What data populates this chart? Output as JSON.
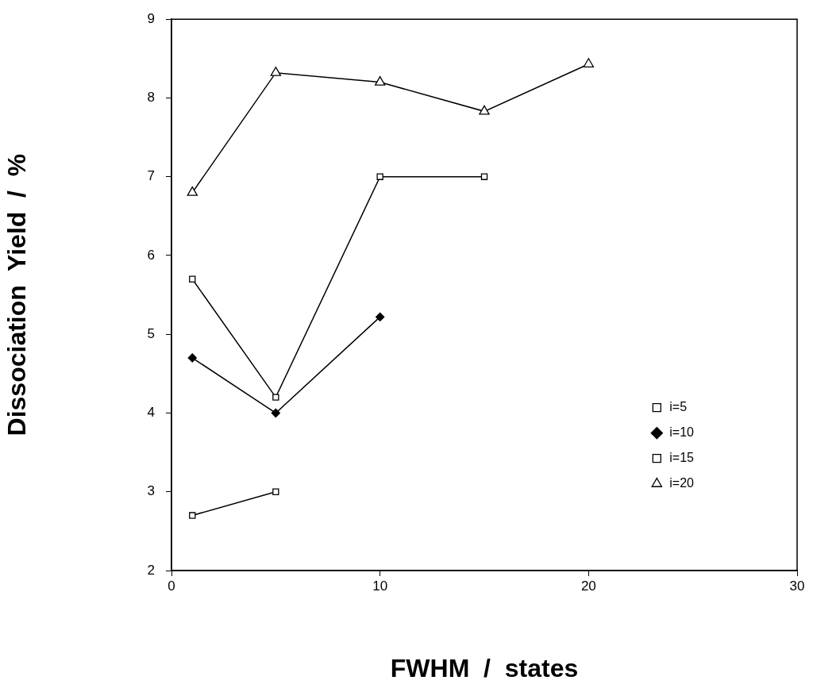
{
  "chart_data": {
    "type": "line",
    "xlabel": "FWHM  /  states",
    "ylabel": "Dissociation  Yield  /  %",
    "xlim": [
      0,
      30
    ],
    "xticks": [
      0,
      10,
      20,
      30
    ],
    "ylim": [
      2,
      9
    ],
    "yticks": [
      2,
      3,
      4,
      5,
      6,
      7,
      8,
      9
    ],
    "grid": false,
    "legend": "bottom right",
    "line_style": "solid",
    "series": [
      {
        "name": "i=5",
        "color": "#000000",
        "marker": "square",
        "x": [
          1,
          5
        ],
        "values": [
          2.7,
          3.0
        ]
      },
      {
        "name": "i=10",
        "color": "#000000",
        "marker": "diamond",
        "x": [
          1,
          5,
          10
        ],
        "values": [
          4.7,
          4.0,
          5.22
        ]
      },
      {
        "name": "i=15",
        "color": "#000000",
        "marker": "square",
        "x": [
          1,
          5,
          10,
          15
        ],
        "values": [
          5.7,
          4.2,
          7.0,
          7.0
        ]
      },
      {
        "name": "i=20",
        "color": "#000000",
        "marker": "triangle",
        "x": [
          1,
          5,
          10,
          15,
          20
        ],
        "values": [
          6.8,
          8.32,
          8.2,
          7.83,
          8.43
        ]
      }
    ]
  }
}
